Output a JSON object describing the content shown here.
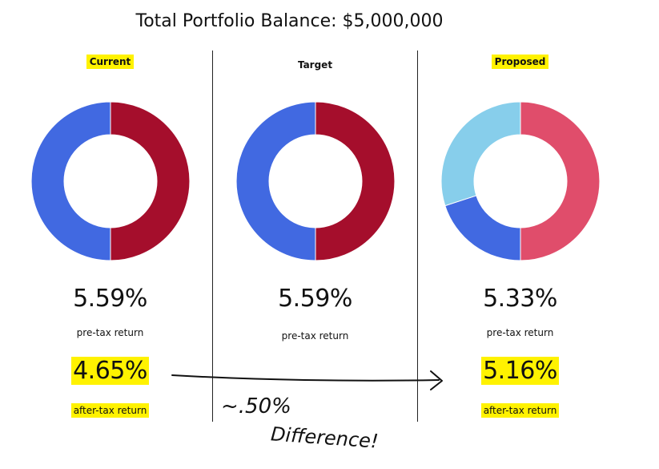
{
  "title": "Total Portfolio Balance: $5,000,000",
  "colors": {
    "blue": "#4169e1",
    "dark_red": "#a50e2c",
    "light_blue": "#87ceeb",
    "pink_red": "#e04d6b",
    "highlight": "#fff200"
  },
  "chart_data": [
    {
      "type": "pie",
      "title": "Current",
      "slices": [
        {
          "value": 50,
          "color": "#a50e2c"
        },
        {
          "value": 50,
          "color": "#4169e1"
        }
      ],
      "pretax_return": "5.59%",
      "pretax_label": "pre-tax return",
      "aftertax_return": "4.65%",
      "aftertax_label": "after-tax return",
      "highlighted": true
    },
    {
      "type": "pie",
      "title": "Target",
      "slices": [
        {
          "value": 50,
          "color": "#a50e2c"
        },
        {
          "value": 50,
          "color": "#4169e1"
        }
      ],
      "pretax_return": "5.59%",
      "pretax_label": "pre-tax return",
      "aftertax_return": "",
      "aftertax_label": "",
      "highlighted": false
    },
    {
      "type": "pie",
      "title": "Proposed",
      "slices": [
        {
          "value": 50,
          "color": "#e04d6b"
        },
        {
          "value": 20,
          "color": "#4169e1"
        },
        {
          "value": 30,
          "color": "#87ceeb"
        }
      ],
      "pretax_return": "5.33%",
      "pretax_label": "pre-tax return",
      "aftertax_return": "5.16%",
      "aftertax_label": "after-tax return",
      "highlighted": true
    }
  ],
  "annotation": {
    "line1": "~.50%",
    "line2": "Difference!"
  }
}
